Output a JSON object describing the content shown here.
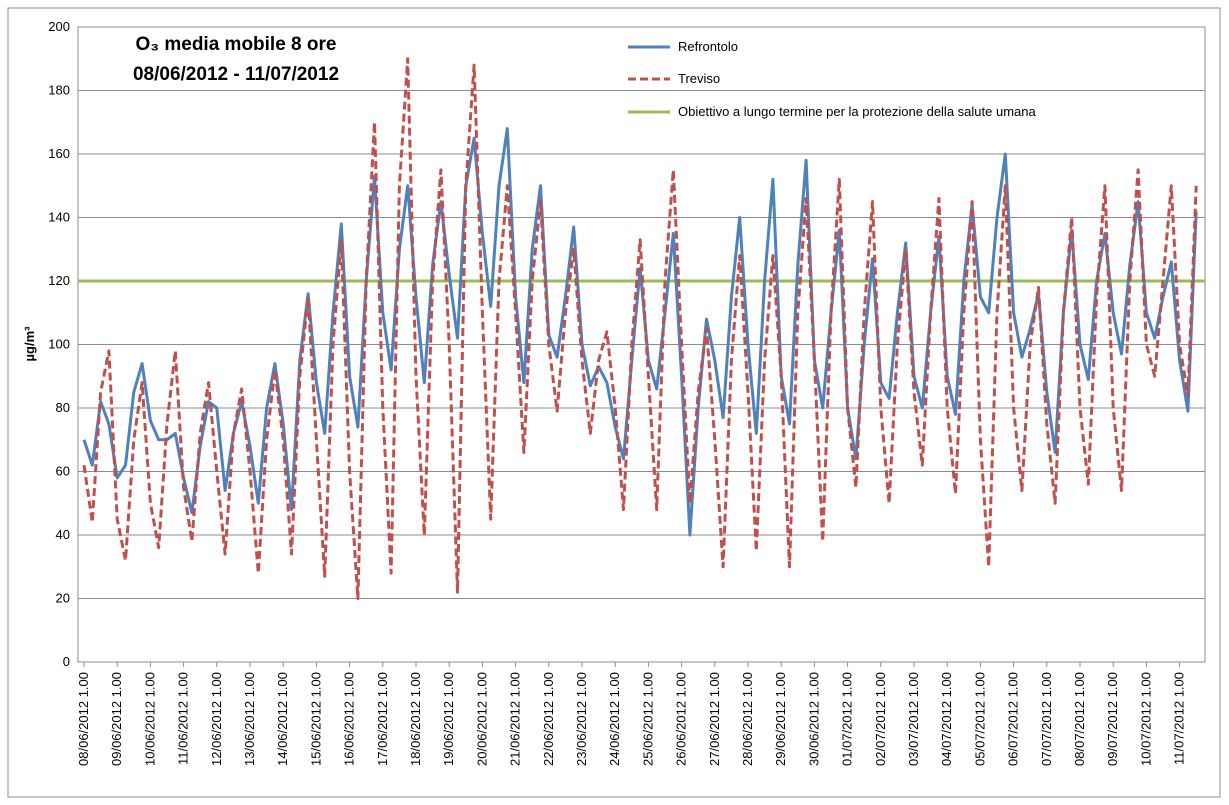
{
  "chart_data": {
    "type": "line",
    "title": [
      "O₃ media mobile 8 ore",
      "08/06/2012 - 11/07/2012"
    ],
    "y_label": "µg/m³",
    "categories": [
      "08/06/2012 1.00",
      null,
      null,
      null,
      "09/06/2012 1.00",
      null,
      null,
      null,
      "10/06/2012 1.00",
      null,
      null,
      null,
      "11/06/2012 1.00",
      null,
      null,
      null,
      "12/06/2012 1.00",
      null,
      null,
      null,
      "13/06/2012 1.00",
      null,
      null,
      null,
      "14/06/2012 1.00",
      null,
      null,
      null,
      "15/06/2012 1.00",
      null,
      null,
      null,
      "16/06/2012 1.00",
      null,
      null,
      null,
      "17/06/2012 1.00",
      null,
      null,
      null,
      "18/06/2012 1.00",
      null,
      null,
      null,
      "19/06/2012 1.00",
      null,
      null,
      null,
      "20/06/2012 1.00",
      null,
      null,
      null,
      "21/06/2012 1.00",
      null,
      null,
      null,
      "22/06/2012 1.00",
      null,
      null,
      null,
      "23/06/2012 1.00",
      null,
      null,
      null,
      "24/06/2012 1.00",
      null,
      null,
      null,
      "25/06/2012 1.00",
      null,
      null,
      null,
      "26/06/2012 1.00",
      null,
      null,
      null,
      "27/06/2012 1.00",
      null,
      null,
      null,
      "28/06/2012 1.00",
      null,
      null,
      null,
      "29/06/2012 1.00",
      null,
      null,
      null,
      "30/06/2012 1.00",
      null,
      null,
      null,
      "01/07/2012 1.00",
      null,
      null,
      null,
      "02/07/2012 1.00",
      null,
      null,
      null,
      "03/07/2012 1.00",
      null,
      null,
      null,
      "04/07/2012 1.00",
      null,
      null,
      null,
      "05/07/2012 1.00",
      null,
      null,
      null,
      "06/07/2012 1.00",
      null,
      null,
      null,
      "07/07/2012 1.00",
      null,
      null,
      null,
      "08/07/2012 1.00",
      null,
      null,
      null,
      "09/07/2012 1.00",
      null,
      null,
      null,
      "10/07/2012 1.00",
      null,
      null,
      null,
      "11/07/2012 1.00",
      null,
      null
    ],
    "series": [
      {
        "name": "Refrontolo",
        "color": "#4f81bd",
        "dashed": false,
        "values": [
          70,
          62,
          82,
          75,
          58,
          62,
          85,
          94,
          76,
          70,
          70,
          72,
          58,
          47,
          68,
          82,
          80,
          54,
          72,
          82,
          68,
          50,
          80,
          94,
          75,
          48,
          95,
          116,
          88,
          72,
          110,
          138,
          90,
          74,
          120,
          153,
          110,
          92,
          130,
          150,
          115,
          88,
          125,
          145,
          122,
          102,
          150,
          165,
          135,
          112,
          150,
          168,
          115,
          88,
          130,
          150,
          103,
          96,
          115,
          137,
          100,
          87,
          93,
          88,
          74,
          64,
          95,
          124,
          95,
          86,
          110,
          135,
          90,
          40,
          80,
          108,
          95,
          77,
          115,
          140,
          100,
          72,
          120,
          152,
          90,
          75,
          125,
          158,
          95,
          80,
          110,
          136,
          80,
          64,
          100,
          127,
          88,
          83,
          110,
          132,
          90,
          80,
          110,
          134,
          90,
          78,
          120,
          144,
          115,
          110,
          140,
          160,
          110,
          96,
          105,
          116,
          85,
          66,
          110,
          136,
          100,
          89,
          120,
          135,
          110,
          97,
          125,
          145,
          110,
          102,
          115,
          126,
          95,
          79,
          142
        ]
      },
      {
        "name": "Treviso",
        "color": "#c0504d",
        "dashed": true,
        "values": [
          62,
          44,
          85,
          98,
          45,
          32,
          70,
          88,
          50,
          36,
          75,
          98,
          55,
          38,
          72,
          88,
          60,
          34,
          72,
          86,
          60,
          28,
          70,
          92,
          70,
          34,
          90,
          115,
          70,
          27,
          100,
          133,
          60,
          20,
          120,
          170,
          80,
          28,
          150,
          190,
          90,
          40,
          120,
          155,
          100,
          22,
          150,
          188,
          110,
          45,
          120,
          150,
          110,
          66,
          120,
          145,
          100,
          79,
          110,
          130,
          95,
          72,
          95,
          104,
          80,
          48,
          100,
          133,
          90,
          48,
          120,
          155,
          100,
          50,
          85,
          105,
          70,
          30,
          95,
          128,
          85,
          35,
          95,
          128,
          90,
          30,
          110,
          146,
          95,
          38,
          110,
          152,
          80,
          55,
          110,
          145,
          80,
          50,
          100,
          130,
          85,
          62,
          110,
          146,
          80,
          53,
          110,
          145,
          70,
          30,
          110,
          150,
          80,
          54,
          100,
          118,
          75,
          50,
          110,
          140,
          80,
          56,
          115,
          150,
          80,
          54,
          120,
          155,
          100,
          90,
          120,
          150,
          100,
          84,
          150
        ]
      }
    ],
    "threshold": {
      "name": "Obiettivo a lungo termine per la protezione della salute umana",
      "value": 120,
      "color": "#9bbb59"
    },
    "ylim": [
      0,
      200
    ],
    "yticks": [
      0,
      20,
      40,
      60,
      80,
      100,
      120,
      140,
      160,
      180,
      200
    ],
    "grid": true
  }
}
